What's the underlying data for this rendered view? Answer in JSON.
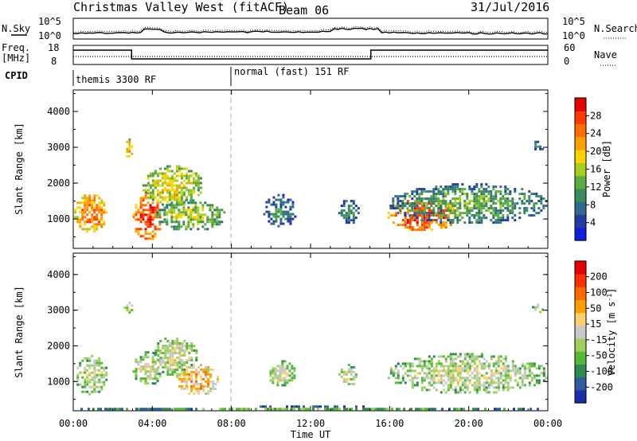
{
  "header": {
    "station": "Christmas Valley West (fitACF)",
    "beam": "Beam 06",
    "date": "31/Jul/2016"
  },
  "status_panels": {
    "nsky_label": "N.Sky",
    "nsky_ticks": [
      "10^5",
      "10^0"
    ],
    "nsearch_label": "N.Search",
    "nsearch_ticks": [
      "10^5",
      "10^0"
    ],
    "freq_label": "Freq.",
    "freq_unit": "[MHz]",
    "freq_ticks": [
      "18",
      "8"
    ],
    "nave_label": "Nave",
    "nave_ticks": [
      "60",
      "0"
    ],
    "cpid_label": "CPID",
    "cpid_segments": [
      "themis 3300 RF",
      "normal (fast) 151 RF"
    ]
  },
  "chart_data": [
    {
      "type": "heatmap",
      "title": "",
      "ylabel": "Slant Range [km]",
      "xlabel": "",
      "ylim": [
        180,
        4600
      ],
      "xlim": [
        0,
        24
      ],
      "yticks": [
        "1000",
        "2000",
        "3000",
        "4000"
      ],
      "colorbar": {
        "label": "Power [dB]",
        "ticks": [
          "4",
          "8",
          "12",
          "16",
          "20",
          "24",
          "28"
        ],
        "colors": [
          "#1020e0",
          "#203c9c",
          "#2d6a8c",
          "#3a8c5a",
          "#5cae3c",
          "#aacc20",
          "#ffd400",
          "#ffa000",
          "#ff7000",
          "#ff3a00",
          "#e60000"
        ]
      },
      "regions": [
        {
          "t0": 0.05,
          "t1": 1.7,
          "r0": 650,
          "r1": 1750,
          "level": 8
        },
        {
          "t0": 2.55,
          "t1": 2.95,
          "r0": 2750,
          "r1": 3250,
          "level": 7
        },
        {
          "t0": 3.0,
          "t1": 4.4,
          "r0": 400,
          "r1": 1750,
          "level": 9
        },
        {
          "t0": 4.2,
          "t1": 7.6,
          "r0": 700,
          "r1": 1550,
          "level": 5
        },
        {
          "t0": 3.5,
          "t1": 6.5,
          "r0": 1400,
          "r1": 2500,
          "level": 6
        },
        {
          "t0": 9.6,
          "t1": 11.2,
          "r0": 800,
          "r1": 1700,
          "level": 3
        },
        {
          "t0": 13.4,
          "t1": 14.4,
          "r0": 900,
          "r1": 1600,
          "level": 3
        },
        {
          "t0": 15.9,
          "t1": 19.4,
          "r0": 700,
          "r1": 1600,
          "level": 9
        },
        {
          "t0": 16.0,
          "t1": 23.9,
          "r0": 900,
          "r1": 2000,
          "level": 4
        },
        {
          "t0": 23.2,
          "t1": 23.8,
          "r0": 2950,
          "r1": 3250,
          "level": 3
        }
      ]
    },
    {
      "type": "heatmap",
      "title": "",
      "ylabel": "Slant Range [km]",
      "xlabel": "Time UT",
      "ylim": [
        180,
        4600
      ],
      "xlim": [
        0,
        24
      ],
      "xticks": [
        "00:00",
        "04:00",
        "08:00",
        "12:00",
        "16:00",
        "20:00",
        "00:00"
      ],
      "yticks": [
        "1000",
        "2000",
        "3000",
        "4000"
      ],
      "colorbar": {
        "label": "Velocity [m s-1]",
        "ticks": [
          "200",
          "100",
          "50",
          "15",
          "-15",
          "-50",
          "-100",
          "-200"
        ],
        "colors": [
          "#1a2ea8",
          "#2e5aa0",
          "#2e8a52",
          "#54b838",
          "#9cd05a",
          "#c8c8c8",
          "#ffd070",
          "#ffa000",
          "#ff6a00",
          "#ff3000",
          "#e60000"
        ]
      },
      "regions": [
        {
          "t0": 0.05,
          "t1": 1.7,
          "r0": 650,
          "r1": 1750,
          "level": 5
        },
        {
          "t0": 2.55,
          "t1": 2.95,
          "r0": 2950,
          "r1": 3300,
          "level": 5
        },
        {
          "t0": 3.0,
          "t1": 4.4,
          "r0": 900,
          "r1": 1850,
          "level": 5
        },
        {
          "t0": 4.0,
          "t1": 6.2,
          "r0": 1200,
          "r1": 2300,
          "level": 5
        },
        {
          "t0": 5.2,
          "t1": 7.3,
          "r0": 650,
          "r1": 1500,
          "level": 7
        },
        {
          "t0": 9.8,
          "t1": 11.2,
          "r0": 900,
          "r1": 1600,
          "level": 5
        },
        {
          "t0": 13.4,
          "t1": 14.3,
          "r0": 900,
          "r1": 1500,
          "level": 5
        },
        {
          "t0": 15.9,
          "t1": 23.9,
          "r0": 700,
          "r1": 1800,
          "level": 5
        },
        {
          "t0": 0.0,
          "t1": 24.0,
          "r0": 200,
          "r1": 330,
          "level": 3
        },
        {
          "t0": 23.2,
          "t1": 23.7,
          "r0": 2950,
          "r1": 3250,
          "level": 5
        }
      ]
    }
  ]
}
